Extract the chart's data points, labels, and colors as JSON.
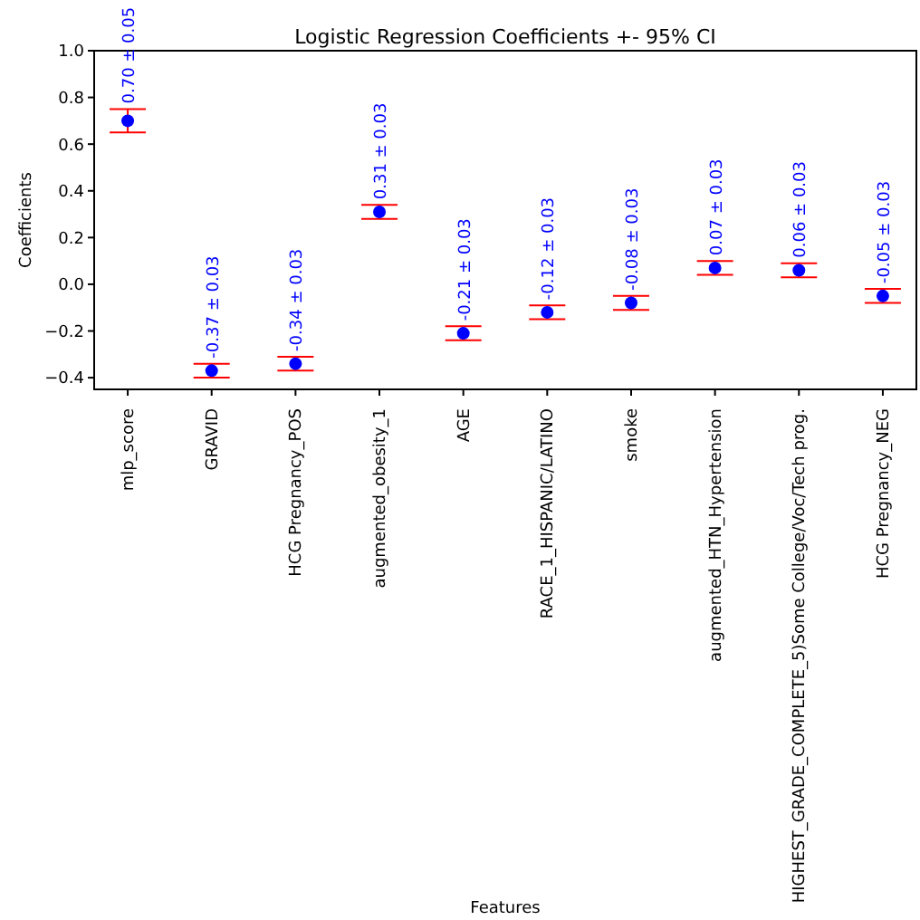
{
  "chart_data": {
    "type": "scatter",
    "title": "Logistic Regression Coefficients +- 95% CI",
    "xlabel": "Features",
    "ylabel": "Coefficients",
    "categories": [
      "mlp_score",
      "GRAVID",
      "HCG Pregnancy_POS",
      "augmented_obesity_1",
      "AGE",
      "RACE_1_HISPANIC/LATINO",
      "smoke",
      "augmented_HTN_Hypertension",
      "HIGHEST_GRADE_COMPLETE_5)Some College/Voc/Tech prog.",
      "HCG Pregnancy_NEG"
    ],
    "series": [
      {
        "color": "#0000ff",
        "values": [
          0.7,
          -0.37,
          -0.34,
          0.31,
          -0.21,
          -0.12,
          -0.08,
          0.07,
          0.06,
          -0.05
        ],
        "errors": [
          0.05,
          0.03,
          0.03,
          0.03,
          0.03,
          0.03,
          0.03,
          0.03,
          0.03,
          0.03
        ],
        "value_labels": [
          "0.70 ± 0.05",
          "-0.37 ± 0.03",
          "-0.34 ± 0.03",
          "0.31 ± 0.03",
          "-0.21 ± 0.03",
          "-0.12 ± 0.03",
          "-0.08 ± 0.03",
          "0.07 ± 0.03",
          "0.06 ± 0.03",
          "-0.05 ± 0.03"
        ]
      }
    ],
    "ylim": [
      -0.45,
      1.0
    ],
    "yticks": [
      {
        "value": -0.4,
        "label": "−0.4"
      },
      {
        "value": -0.2,
        "label": "−0.2"
      },
      {
        "value": 0.0,
        "label": "0.0"
      },
      {
        "value": 0.2,
        "label": "0.2"
      },
      {
        "value": 0.4,
        "label": "0.4"
      },
      {
        "value": 0.6,
        "label": "0.6"
      },
      {
        "value": 0.8,
        "label": "0.8"
      },
      {
        "value": 1.0,
        "label": "1.0"
      }
    ],
    "marker": "circle"
  }
}
